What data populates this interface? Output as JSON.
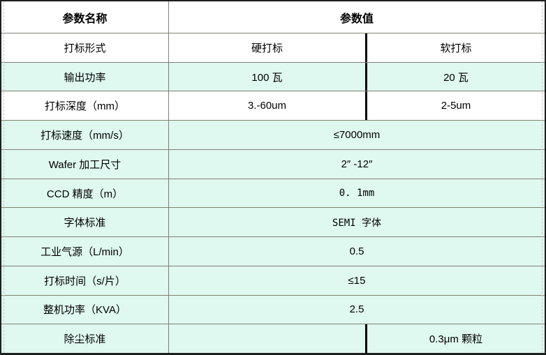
{
  "table": {
    "headers": {
      "name": "参数名称",
      "value": "参数值"
    },
    "rows": [
      {
        "name": "打标形式",
        "type": "split",
        "value1": "硬打标",
        "value2": "软打标",
        "highlight": false
      },
      {
        "name": "输出功率",
        "type": "split",
        "value1": "100 瓦",
        "value2": "20 瓦",
        "highlight": true
      },
      {
        "name": "打标深度（mm）",
        "type": "split",
        "value1": "3.-60um",
        "value2": "2-5um",
        "highlight": false
      },
      {
        "name": "打标速度（mm/s）",
        "type": "single",
        "value": "≤7000mm",
        "highlight": true
      },
      {
        "name": "Wafer 加工尺寸",
        "type": "single",
        "value": "2″ -12″",
        "highlight": true
      },
      {
        "name": "CCD 精度（m）",
        "type": "single",
        "value": "0. 1mm",
        "highlight": true
      },
      {
        "name": "字体标准",
        "type": "single",
        "value": "SEMI 字体",
        "highlight": true
      },
      {
        "name": "工业气源（L/min）",
        "type": "single",
        "value": "0.5",
        "highlight": true
      },
      {
        "name": "打标时间（s/片）",
        "type": "single",
        "value": "≤15",
        "highlight": true
      },
      {
        "name": "整机功率（KVA）",
        "type": "single",
        "value": "2.5",
        "highlight": true
      },
      {
        "name": "除尘标准",
        "type": "split",
        "value1": "",
        "value2": "0.3μm 颗粒",
        "highlight": true
      }
    ],
    "colors": {
      "row_highlight": "#dff8f0",
      "grid_line": "#7f7f76",
      "outer_border": "#1f1f1f",
      "split_divider": "#000000"
    }
  }
}
